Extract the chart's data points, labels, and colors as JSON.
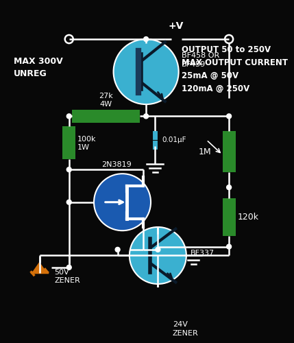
{
  "bg_color": "#080808",
  "wire_color": "#ffffff",
  "resistor_color": "#2a8a2a",
  "transistor_blue_light": "#3ab0d0",
  "transistor_blue_dark": "#1a5ab0",
  "zener_color": "#d4700a",
  "cap_color": "#3ab0d0",
  "text_color": "#ffffff",
  "title_left": "MAX 300V\nUNREG",
  "title_right": "OUTPUT 50 to 250V\nMAX OUTPUT CURRENT\n25mA @ 50V\n120mA @ 250V",
  "label_27k": "27k\n4W",
  "label_100k": "100k\n1W",
  "label_1M": "1M",
  "label_120k": "120k",
  "label_cap": "0.01μF",
  "label_bf458": "BF458 OR\nBF459",
  "label_bf337": "BF337",
  "label_2n3819": "2N3819",
  "label_50v": "50V\nZENER",
  "label_24v": "24V\nZENER",
  "label_vplus": "+V"
}
